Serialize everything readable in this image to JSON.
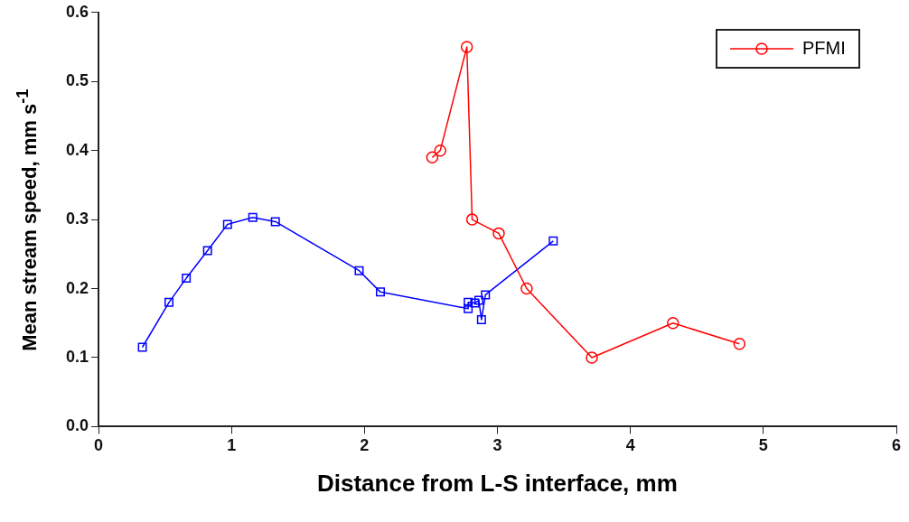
{
  "chart_data": {
    "type": "line",
    "xlabel": "Distance from L-S interface, mm",
    "ylabel": "Mean stream speed, mm s$^{-1}$",
    "xlim": [
      0,
      6
    ],
    "xticks": [
      0,
      1,
      2,
      3,
      4,
      5,
      6
    ],
    "ylim": [
      0,
      0.6
    ],
    "yticks": [
      {
        "value": 0,
        "label": "0.0"
      },
      0.1,
      0.2,
      0.3,
      0.4,
      0.5,
      0.6
    ],
    "grid": false,
    "legend": "top right",
    "series": [
      {
        "name": "PFMI",
        "color": "#ff0000",
        "marker": "circle",
        "x": [
          2.51,
          2.57,
          2.77,
          2.81,
          3.01,
          3.22,
          3.71,
          4.32,
          4.82
        ],
        "values": [
          0.39,
          0.4,
          0.55,
          0.3,
          0.28,
          0.2,
          0.1,
          0.15,
          0.12
        ]
      },
      {
        "color": "#0000ff",
        "marker": "square",
        "x": [
          0.33,
          0.53,
          0.66,
          0.82,
          0.97,
          1.16,
          1.33,
          1.96,
          2.12,
          2.78,
          2.78,
          2.83,
          2.86,
          2.88,
          2.91,
          3.42
        ],
        "values": [
          0.115,
          0.18,
          0.215,
          0.255,
          0.293,
          0.303,
          0.297,
          0.226,
          0.195,
          0.171,
          0.18,
          0.179,
          0.183,
          0.155,
          0.191,
          0.269
        ]
      }
    ]
  }
}
